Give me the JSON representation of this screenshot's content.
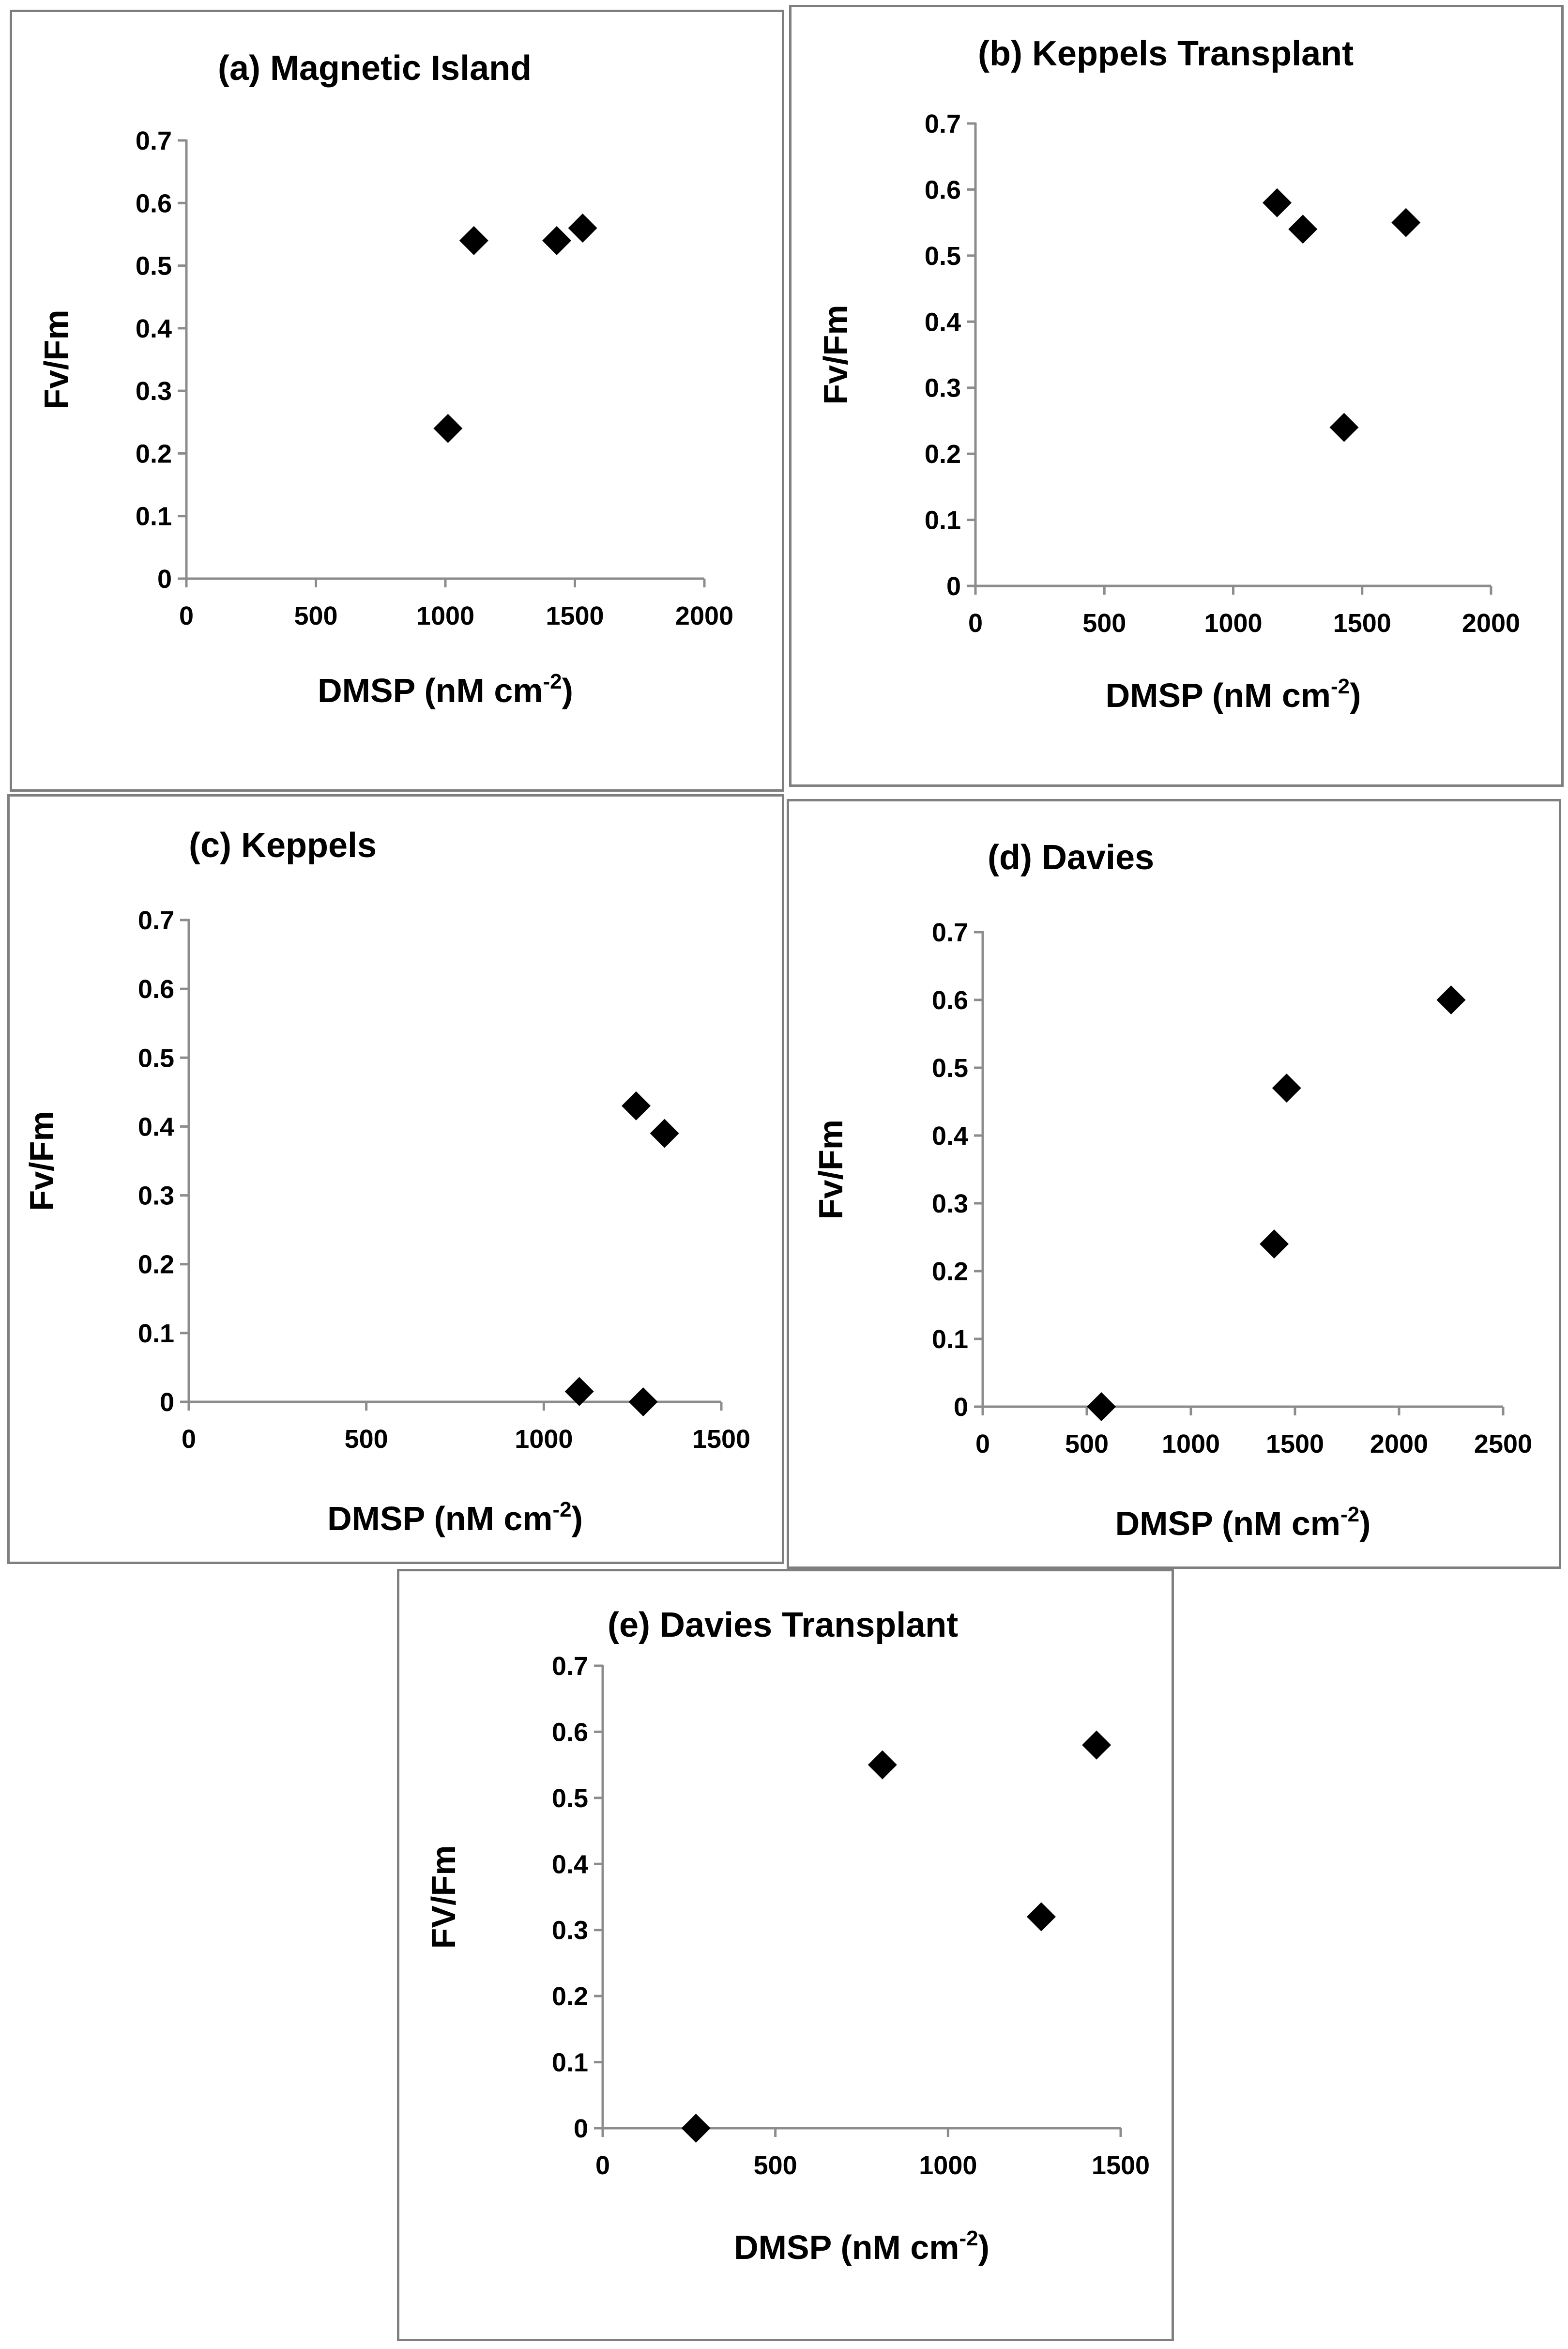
{
  "chart_data": [
    {
      "type": "scatter",
      "title": "(a) Magnetic Island",
      "xlabel": "DMSP (nM cm",
      "xlabel_sup": "-2",
      "xlabel_end": ")",
      "ylabel": "Fv/Fm",
      "xlim": [
        0,
        2000
      ],
      "ylim": [
        0,
        0.7
      ],
      "x_ticks": [
        "0",
        "500",
        "1000",
        "1500",
        "2000"
      ],
      "y_ticks": [
        "0",
        "0.1",
        "0.2",
        "0.3",
        "0.4",
        "0.5",
        "0.6",
        "0.7"
      ],
      "points": [
        {
          "x": 1010,
          "y": 0.24
        },
        {
          "x": 1110,
          "y": 0.54
        },
        {
          "x": 1430,
          "y": 0.54
        },
        {
          "x": 1530,
          "y": 0.56
        }
      ]
    },
    {
      "type": "scatter",
      "title": "(b) Keppels Transplant",
      "xlabel": "DMSP (nM cm",
      "xlabel_sup": "-2",
      "xlabel_end": ")",
      "ylabel": "Fv/Fm",
      "xlim": [
        0,
        2000
      ],
      "ylim": [
        0,
        0.7
      ],
      "x_ticks": [
        "0",
        "500",
        "1000",
        "1500",
        "2000"
      ],
      "y_ticks": [
        "0",
        "0.1",
        "0.2",
        "0.3",
        "0.4",
        "0.5",
        "0.6",
        "0.7"
      ],
      "points": [
        {
          "x": 1170,
          "y": 0.58
        },
        {
          "x": 1270,
          "y": 0.54
        },
        {
          "x": 1430,
          "y": 0.24
        },
        {
          "x": 1670,
          "y": 0.55
        }
      ]
    },
    {
      "type": "scatter",
      "title": "(c) Keppels",
      "xlabel": "DMSP (nM cm",
      "xlabel_sup": "-2",
      "xlabel_end": ")",
      "ylabel": "Fv/Fm",
      "xlim": [
        0,
        1500
      ],
      "ylim": [
        0,
        0.7
      ],
      "x_ticks": [
        "0",
        "500",
        "1000",
        "1500"
      ],
      "y_ticks": [
        "0",
        "0.1",
        "0.2",
        "0.3",
        "0.4",
        "0.5",
        "0.6",
        "0.7"
      ],
      "points": [
        {
          "x": 1100,
          "y": 0.015
        },
        {
          "x": 1260,
          "y": 0.43
        },
        {
          "x": 1280,
          "y": 0.0
        },
        {
          "x": 1340,
          "y": 0.39
        }
      ]
    },
    {
      "type": "scatter",
      "title": "(d) Davies",
      "xlabel": "DMSP (nM cm",
      "xlabel_sup": "-2",
      "xlabel_end": ")",
      "ylabel": "Fv/Fm",
      "xlim": [
        0,
        2500
      ],
      "ylim": [
        0,
        0.7
      ],
      "x_ticks": [
        "0",
        "500",
        "1000",
        "1500",
        "2000",
        "2500"
      ],
      "y_ticks": [
        "0",
        "0.1",
        "0.2",
        "0.3",
        "0.4",
        "0.5",
        "0.6",
        "0.7"
      ],
      "points": [
        {
          "x": 570,
          "y": 0.0
        },
        {
          "x": 1400,
          "y": 0.24
        },
        {
          "x": 1460,
          "y": 0.47
        },
        {
          "x": 2250,
          "y": 0.6
        }
      ]
    },
    {
      "type": "scatter",
      "title": "(e) Davies Transplant",
      "xlabel": "DMSP (nM cm",
      "xlabel_sup": "-2",
      "xlabel_end": ")",
      "ylabel": "FV/Fm",
      "xlim": [
        0,
        1500
      ],
      "ylim": [
        0,
        0.7
      ],
      "x_ticks": [
        "0",
        "500",
        "1000",
        "1500"
      ],
      "y_ticks": [
        "0",
        "0.1",
        "0.2",
        "0.3",
        "0.4",
        "0.5",
        "0.6",
        "0.7"
      ],
      "points": [
        {
          "x": 270,
          "y": 0.0
        },
        {
          "x": 810,
          "y": 0.55
        },
        {
          "x": 1270,
          "y": 0.32
        },
        {
          "x": 1430,
          "y": 0.58
        }
      ]
    }
  ]
}
